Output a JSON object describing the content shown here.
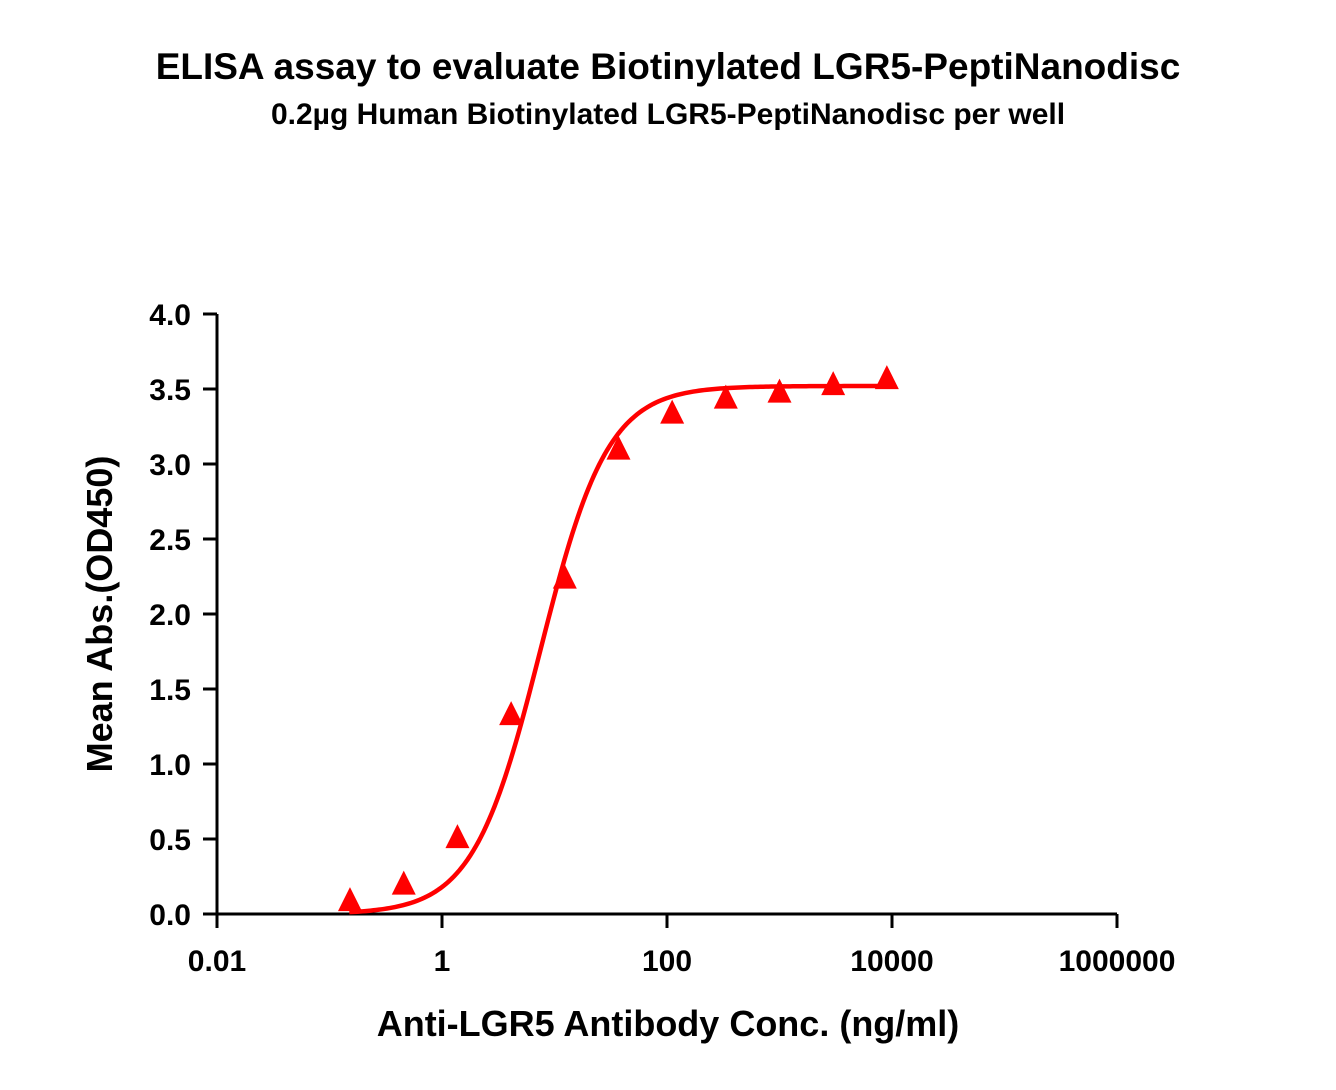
{
  "title": "ELISA assay to evaluate Biotinylated LGR5-PeptiNanodisc",
  "subtitle": "0.2µg Human Biotinylated LGR5-PeptiNanodisc per well",
  "chart_data": {
    "type": "scatter",
    "title": "ELISA assay to evaluate Biotinylated LGR5-PeptiNanodisc",
    "subtitle": "0.2µg Human Biotinylated LGR5-PeptiNanodisc per well",
    "xlabel": "Anti-LGR5 Antibody Conc. (ng/ml)",
    "ylabel": "Mean Abs.(OD450)",
    "xscale": "log",
    "xlim": [
      0.01,
      1000000
    ],
    "ylim": [
      0.0,
      4.0
    ],
    "x_ticks": [
      "0.01",
      "1",
      "100",
      "10000",
      "1000000"
    ],
    "x_tick_values": [
      0.01,
      1,
      100,
      10000,
      1000000
    ],
    "y_ticks": [
      "0.0",
      "0.5",
      "1.0",
      "1.5",
      "2.0",
      "2.5",
      "3.0",
      "3.5",
      "4.0"
    ],
    "y_tick_values": [
      0.0,
      0.5,
      1.0,
      1.5,
      2.0,
      2.5,
      3.0,
      3.5,
      4.0
    ],
    "grid": false,
    "legend": "none",
    "marker": "triangle",
    "color": "#ff0000",
    "series": [
      {
        "x": [
          0.152,
          0.457,
          1.372,
          4.115,
          12.35,
          37.04,
          111.1,
          333.3,
          1000,
          3000,
          9000
        ],
        "y": [
          0.08,
          0.19,
          0.5,
          1.32,
          2.23,
          3.09,
          3.33,
          3.43,
          3.47,
          3.52,
          3.56
        ]
      }
    ],
    "fit_curve": {
      "type": "4PL",
      "bottom": 0.0,
      "top": 3.52,
      "ec50": 7.5,
      "hill": 1.45,
      "x_range": [
        0.15,
        9000
      ]
    }
  }
}
